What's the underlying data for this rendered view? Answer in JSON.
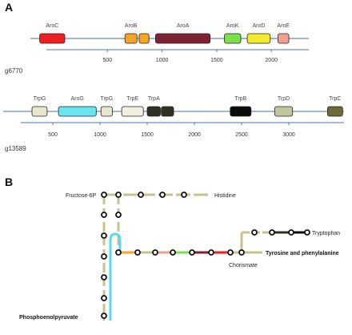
{
  "panel_a": {
    "letter": "A",
    "tracks": [
      {
        "contig": "g6770",
        "genes": [
          {
            "name": "AroC",
            "start": -120,
            "end": 110,
            "color": "#f01e1e"
          },
          {
            "name": "AroB",
            "start": 660,
            "end": 770,
            "color": "#f6a623"
          },
          {
            "name": "",
            "start": 790,
            "end": 880,
            "color": "#f6a623"
          },
          {
            "name": "AroA",
            "start": 940,
            "end": 1440,
            "color": "#7d2230"
          },
          {
            "name": "AroK",
            "start": 1570,
            "end": 1720,
            "color": "#7be04a"
          },
          {
            "name": "AroD",
            "start": 1780,
            "end": 1990,
            "color": "#f2ea2c"
          },
          {
            "name": "AroE",
            "start": 2060,
            "end": 2160,
            "color": "#f0a08c"
          }
        ],
        "ticks": [
          "500",
          "1000",
          "1500",
          "2000"
        ]
      },
      {
        "contig": "g13589",
        "genes": [
          {
            "name": "TrpG",
            "start": 280,
            "end": 440,
            "color": "#e8e6cc"
          },
          {
            "name": "AroG",
            "start": 560,
            "end": 960,
            "color": "#66e6ee"
          },
          {
            "name": "TrpG",
            "start": 1010,
            "end": 1130,
            "color": "#e8e6cc"
          },
          {
            "name": "TrpE",
            "start": 1230,
            "end": 1460,
            "color": "#f0efe2"
          },
          {
            "name": "TrpA",
            "start": 1500,
            "end": 1640,
            "color": "#2f3222"
          },
          {
            "name": "",
            "start": 1650,
            "end": 1780,
            "color": "#2f3222"
          },
          {
            "name": "TrpB",
            "start": 2380,
            "end": 2600,
            "color": "#0a0a0a"
          },
          {
            "name": "TrpD",
            "start": 2850,
            "end": 3040,
            "color": "#c2c49a"
          },
          {
            "name": "TrpC",
            "start": 3410,
            "end": 3570,
            "color": "#6e6a3a"
          }
        ],
        "ticks": [
          "500",
          "1000",
          "1500",
          "2000",
          "2500",
          "3000"
        ]
      }
    ]
  },
  "panel_b": {
    "letter": "B",
    "labels": {
      "fructose": "Fructose-6P",
      "histidine": "Histidine",
      "tryptophan": "Tryptophan",
      "tyrosine": "Tyrosine and phenylalanine",
      "chorismate": "Chorismate",
      "pep": "Phosphoenolpyruvate"
    },
    "colors": {
      "track": "#c8c28e",
      "pep_link": "#5ad8f0",
      "node_stroke": "#111111"
    }
  }
}
